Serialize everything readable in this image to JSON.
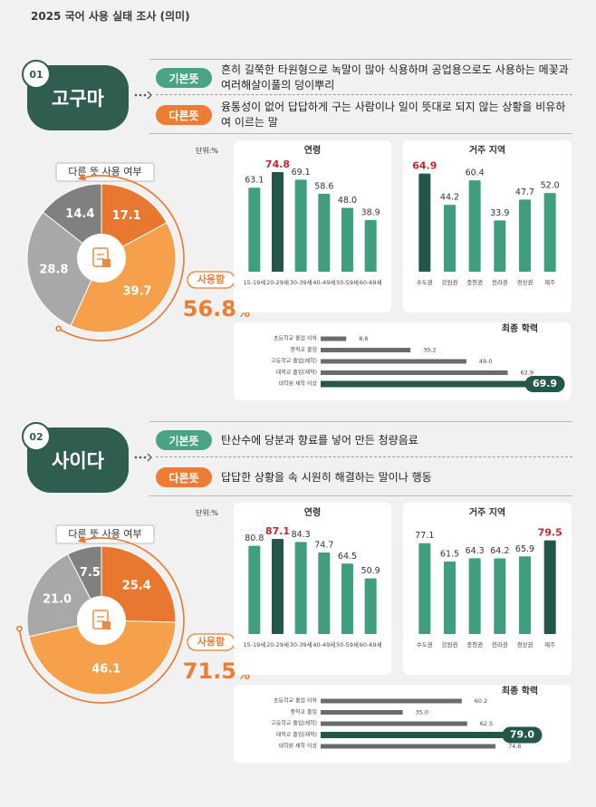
{
  "title": "2025 국어 사용 실태 조사 (의미)",
  "sections": [
    {
      "number": "01",
      "word": "고구마",
      "basic_label": "기본뜻",
      "basic": "흔히 길쭉한 타원형으로 녹말이 많아 식용하며 공업용으로도 사용하는 메꽃과 여러해살이풀의 덩이뿌리",
      "other_label": "다른뜻",
      "other": "융통성이 없어 답답하게 구는 사람이나 일이 뜻대로 되지 않는 상황을 비유하여 이르는 말",
      "unit": "단위:%"
    },
    {
      "number": "02",
      "word": "사이다",
      "basic_label": "기본뜻",
      "basic": "탄산수에 당분과 향료를 넣어 만든 청량음료",
      "other_label": "다른뜻",
      "other": "답답한 상황을 속 시원히 해결하는 말이나 행동",
      "unit": "단위:%"
    }
  ],
  "chart_data": [
    {
      "type": "pie",
      "title": "다른 뜻 사용 여부",
      "values": [
        17.1,
        39.7,
        28.8,
        14.4
      ],
      "colors": [
        "#e8772f",
        "#f6a04b",
        "#a8a8a8",
        "#808080"
      ],
      "highlight": {
        "label": "사용함",
        "value": 56.8,
        "unit": "%"
      }
    },
    {
      "type": "bar",
      "title": "연령",
      "categories": [
        "15-19세",
        "20-29세",
        "30-39세",
        "40-49세",
        "50-59세",
        "60-69세"
      ],
      "values": [
        63.1,
        74.8,
        69.1,
        58.6,
        48.0,
        38.9
      ],
      "value_labels": [
        "63.1",
        "74.8",
        "69.1",
        "58.6",
        "48.0",
        "38.9"
      ],
      "colors": [
        "#3f9e7d",
        "#23574a",
        "#3f9e7d",
        "#3f9e7d",
        "#3f9e7d",
        "#3f9e7d"
      ],
      "label_colors": [
        "#333333",
        "#c0272d",
        "#333333",
        "#333333",
        "#333333",
        "#333333"
      ],
      "ylim": [
        0,
        100
      ]
    },
    {
      "type": "bar",
      "title": "거주 지역",
      "categories": [
        "수도권",
        "강원권",
        "충청권",
        "전라권",
        "경상권",
        "제주"
      ],
      "values": [
        64.9,
        44.2,
        60.4,
        33.9,
        47.7,
        52.0
      ],
      "value_labels": [
        "64.9",
        "44.2",
        "60.4",
        "33.9",
        "47.7",
        "52.0"
      ],
      "colors": [
        "#23574a",
        "#3f9e7d",
        "#3f9e7d",
        "#3f9e7d",
        "#3f9e7d",
        "#3f9e7d"
      ],
      "label_colors": [
        "#c0272d",
        "#333333",
        "#333333",
        "#333333",
        "#333333",
        "#333333"
      ],
      "ylim": [
        0,
        88
      ]
    },
    {
      "type": "hbar",
      "title": "최종 학력",
      "categories": [
        "초등학교 졸업 이하",
        "중학교 졸업",
        "고등학교 졸업(재학)",
        "대학교 졸업(재학)",
        "대학원 재학 이상"
      ],
      "values": [
        8.6,
        30.2,
        49.0,
        62.9,
        69.9
      ],
      "value_labels": [
        "8.6",
        "30.2",
        "49.0",
        "62.9",
        "69.9"
      ],
      "colors": [
        "#6b6b6b",
        "#6b6b6b",
        "#6b6b6b",
        "#6b6b6b",
        "#23574a"
      ],
      "xlim": [
        0,
        67
      ]
    },
    {
      "type": "pie",
      "title": "다른 뜻 사용 여부",
      "values": [
        25.4,
        46.1,
        21.0,
        7.5
      ],
      "value_labels": [
        "25.4",
        "46.1",
        "21.0",
        "7.5"
      ],
      "colors": [
        "#e8772f",
        "#f6a04b",
        "#a8a8a8",
        "#808080"
      ],
      "highlight": {
        "label": "사용함",
        "value": 71.5,
        "unit": "%"
      }
    },
    {
      "type": "bar",
      "title": "연령",
      "categories": [
        "15-19세",
        "20-29세",
        "30-39세",
        "40-49세",
        "50-59세",
        "60-69세"
      ],
      "values": [
        80.8,
        87.1,
        84.3,
        74.7,
        64.5,
        50.9
      ],
      "colors": [
        "#3f9e7d",
        "#23574a",
        "#3f9e7d",
        "#3f9e7d",
        "#3f9e7d",
        "#3f9e7d"
      ],
      "label_colors": [
        "#333333",
        "#c0272d",
        "#333333",
        "#333333",
        "#333333",
        "#333333"
      ],
      "ylim": [
        0,
        122
      ]
    },
    {
      "type": "bar",
      "title": "거주 지역",
      "categories": [
        "수도권",
        "강원권",
        "충청권",
        "전라권",
        "경상권",
        "제주"
      ],
      "values": [
        77.1,
        61.5,
        64.3,
        64.2,
        65.9,
        79.5
      ],
      "colors": [
        "#3f9e7d",
        "#3f9e7d",
        "#3f9e7d",
        "#3f9e7d",
        "#3f9e7d",
        "#23574a"
      ],
      "label_colors": [
        "#333333",
        "#333333",
        "#333333",
        "#333333",
        "#333333",
        "#c0272d"
      ],
      "ylim": [
        0,
        113
      ]
    },
    {
      "type": "hbar",
      "title": "최종 학력",
      "categories": [
        "초등학교 졸업 이하",
        "중학교 졸업",
        "고등학교 졸업(재학)",
        "대학교 졸업(재학)",
        "대학원 재학 이상"
      ],
      "values": [
        60.2,
        35.0,
        62.5,
        79.0,
        74.6
      ],
      "value_labels": [
        "60.2",
        "35.0",
        "62.5",
        "79.0",
        "74.6"
      ],
      "colors": [
        "#6b6b6b",
        "#6b6b6b",
        "#6b6b6b",
        "#23574a",
        "#6b6b6b"
      ],
      "xlim": [
        0,
        85
      ]
    }
  ]
}
